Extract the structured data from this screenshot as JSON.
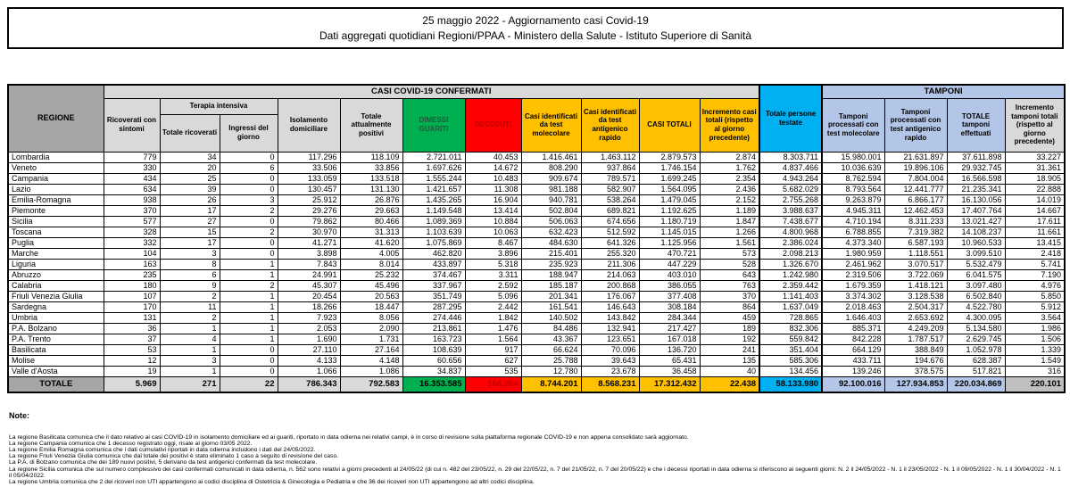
{
  "title": {
    "line1": "25 maggio 2022 - Aggiornamento casi Covid-19",
    "line2": "Dati aggregati quotidiani Regioni/PPAA - Ministero della Salute - Istituto Superiore di Sanità"
  },
  "table": {
    "sections": {
      "casi_confermati": "CASI COVID-19 CONFERMATI",
      "tamponi": "TAMPONI"
    },
    "columns": {
      "regione": "REGIONE",
      "ricoverati": "Ricoverati con sintomi",
      "terapia_intensiva": "Terapia intensiva",
      "ti_totale": "Totale ricoverati",
      "ti_ingressi": "Ingressi del giorno",
      "isolamento": "Isolamento domiciliare",
      "attualmente_positivi": "Totale attualmente positivi",
      "dimessi_guariti": "DIMESSI GUARITI",
      "deceduti": "DECEDUTI",
      "casi_molecolare": "Casi identificati da test molecolare",
      "casi_antigenico": "Casi identificati da test antigenico rapido",
      "casi_totali": "CASI TOTALI",
      "incremento_casi": "Incremento casi totali (rispetto al giorno precedente)",
      "persone_testate": "Totale persone testate",
      "tamponi_molecolare": "Tamponi processati con test molecolare",
      "tamponi_antigenico": "Tamponi processati con test antigenico rapido",
      "tamponi_totale": "TOTALE tamponi effettuati",
      "incremento_tamponi": "Incremento tamponi totali (rispetto al giorno precedente)"
    },
    "rows": [
      [
        "Lombardia",
        "779",
        "34",
        "0",
        "117.296",
        "118.109",
        "2.721.011",
        "40.453",
        "1.416.461",
        "1.463.112",
        "2.879.573",
        "2.874",
        "8.303.711",
        "15.980.001",
        "21.631.897",
        "37.611.898",
        "33.227"
      ],
      [
        "Veneto",
        "330",
        "20",
        "6",
        "33.506",
        "33.856",
        "1.697.626",
        "14.672",
        "808.290",
        "937.864",
        "1.746.154",
        "1.762",
        "4.837.466",
        "10.036.639",
        "19.896.106",
        "29.932.745",
        "31.361"
      ],
      [
        "Campania",
        "434",
        "25",
        "0",
        "133.059",
        "133.518",
        "1.555.244",
        "10.483",
        "909.674",
        "789.571",
        "1.699.245",
        "2.354",
        "4.943.264",
        "8.762.594",
        "7.804.004",
        "16.566.598",
        "18.905"
      ],
      [
        "Lazio",
        "634",
        "39",
        "0",
        "130.457",
        "131.130",
        "1.421.657",
        "11.308",
        "981.188",
        "582.907",
        "1.564.095",
        "2.436",
        "5.682.029",
        "8.793.564",
        "12.441.777",
        "21.235.341",
        "22.888"
      ],
      [
        "Emilia-Romagna",
        "938",
        "26",
        "3",
        "25.912",
        "26.876",
        "1.435.265",
        "16.904",
        "940.781",
        "538.264",
        "1.479.045",
        "2.152",
        "2.755.268",
        "9.263.879",
        "6.866.177",
        "16.130.056",
        "14.019"
      ],
      [
        "Piemonte",
        "370",
        "17",
        "2",
        "29.276",
        "29.663",
        "1.149.548",
        "13.414",
        "502.804",
        "689.821",
        "1.192.625",
        "1.189",
        "3.988.637",
        "4.945.311",
        "12.462.453",
        "17.407.764",
        "14.667"
      ],
      [
        "Sicilia",
        "577",
        "27",
        "0",
        "79.862",
        "80.466",
        "1.089.369",
        "10.884",
        "506.063",
        "674.656",
        "1.180.719",
        "1.847",
        "7.438.677",
        "4.710.194",
        "8.311.233",
        "13.021.427",
        "17.611"
      ],
      [
        "Toscana",
        "328",
        "15",
        "2",
        "30.970",
        "31.313",
        "1.103.639",
        "10.063",
        "632.423",
        "512.592",
        "1.145.015",
        "1.266",
        "4.800.968",
        "6.788.855",
        "7.319.382",
        "14.108.237",
        "11.661"
      ],
      [
        "Puglia",
        "332",
        "17",
        "0",
        "41.271",
        "41.620",
        "1.075.869",
        "8.467",
        "484.630",
        "641.326",
        "1.125.956",
        "1.561",
        "2.386.024",
        "4.373.340",
        "6.587.193",
        "10.960.533",
        "13.415"
      ],
      [
        "Marche",
        "104",
        "3",
        "0",
        "3.898",
        "4.005",
        "462.820",
        "3.896",
        "215.401",
        "255.320",
        "470.721",
        "573",
        "2.098.213",
        "1.980.959",
        "1.118.551",
        "3.099.510",
        "2.418"
      ],
      [
        "Liguria",
        "163",
        "8",
        "1",
        "7.843",
        "8.014",
        "433.897",
        "5.318",
        "235.923",
        "211.306",
        "447.229",
        "528",
        "1.326.670",
        "2.461.962",
        "3.070.517",
        "5.532.479",
        "5.741"
      ],
      [
        "Abruzzo",
        "235",
        "6",
        "1",
        "24.991",
        "25.232",
        "374.467",
        "3.311",
        "188.947",
        "214.063",
        "403.010",
        "643",
        "1.242.980",
        "2.319.506",
        "3.722.069",
        "6.041.575",
        "7.190"
      ],
      [
        "Calabria",
        "180",
        "9",
        "2",
        "45.307",
        "45.496",
        "337.967",
        "2.592",
        "185.187",
        "200.868",
        "386.055",
        "763",
        "2.359.442",
        "1.679.359",
        "1.418.121",
        "3.097.480",
        "4.976"
      ],
      [
        "Friuli Venezia Giulia",
        "107",
        "2",
        "1",
        "20.454",
        "20.563",
        "351.749",
        "5.096",
        "201.341",
        "176.067",
        "377.408",
        "370",
        "1.141.403",
        "3.374.302",
        "3.128.538",
        "6.502.840",
        "5.850"
      ],
      [
        "Sardegna",
        "170",
        "11",
        "1",
        "18.266",
        "18.447",
        "287.295",
        "2.442",
        "161.541",
        "146.643",
        "308.184",
        "864",
        "1.637.049",
        "2.018.463",
        "2.504.317",
        "4.522.780",
        "5.912"
      ],
      [
        "Umbria",
        "131",
        "2",
        "1",
        "7.923",
        "8.056",
        "274.446",
        "1.842",
        "140.502",
        "143.842",
        "284.344",
        "459",
        "728.865",
        "1.646.403",
        "2.653.692",
        "4.300.095",
        "3.564"
      ],
      [
        "P.A. Bolzano",
        "36",
        "1",
        "1",
        "2.053",
        "2.090",
        "213.861",
        "1.476",
        "84.486",
        "132.941",
        "217.427",
        "189",
        "832.306",
        "885.371",
        "4.249.209",
        "5.134.580",
        "1.986"
      ],
      [
        "P.A. Trento",
        "37",
        "4",
        "1",
        "1.690",
        "1.731",
        "163.723",
        "1.564",
        "43.367",
        "123.651",
        "167.018",
        "192",
        "559.842",
        "842.228",
        "1.787.517",
        "2.629.745",
        "1.506"
      ],
      [
        "Basilicata",
        "53",
        "1",
        "0",
        "27.110",
        "27.164",
        "108.639",
        "917",
        "66.624",
        "70.096",
        "136.720",
        "241",
        "351.404",
        "664.129",
        "388.849",
        "1.052.978",
        "1.339"
      ],
      [
        "Molise",
        "12",
        "3",
        "0",
        "4.133",
        "4.148",
        "60.656",
        "627",
        "25.788",
        "39.643",
        "65.431",
        "135",
        "585.306",
        "433.711",
        "194.676",
        "628.387",
        "1.549"
      ],
      [
        "Valle d'Aosta",
        "19",
        "1",
        "0",
        "1.066",
        "1.086",
        "34.837",
        "535",
        "12.780",
        "23.678",
        "36.458",
        "40",
        "134.456",
        "139.246",
        "378.575",
        "517.821",
        "316"
      ]
    ],
    "total": [
      "TOTALE",
      "5.969",
      "271",
      "22",
      "786.343",
      "792.583",
      "16.353.585",
      "166.264",
      "8.744.201",
      "8.568.231",
      "17.312.432",
      "22.438",
      "58.133.980",
      "92.100.016",
      "127.934.853",
      "220.034.869",
      "220.101"
    ]
  },
  "notes": {
    "label": "Note:",
    "items": [
      "La regione Basilicata comunica che il dato relativo ai casi COVID-19 in isolamento domiciliare ed ai guariti, riportato in data odierna nei relativi campi, è in corso di revisione sulla piattaforma regionale COVID-19 e non appena consolidato sarà aggiornato.",
      "La regione Campania comunica che 1 decesso registrato oggi, risale al giorno 03/05 2022.",
      "La regione Emilia Romagna comunica che i dati cumulativi riportati in data odierna includono i dati del 24/05/2022.",
      "La regione Friuli Venezia Giulia comunica che dal totale dei positivi è stato eliminato 1 caso a seguito di revisione del caso.",
      "La P.A. di Bolzano comunica che dei 189 nuovi positivi, 5 derivano da test antigenici confermati da test molecolare.",
      "La regione Sicilia comunica che sul numero complessivo dei casi confermati comunicati in data odierna, n. 562 sono relativi a giorni precedenti al 24/05/22 (di cui n. 482 del 23/05/22, n. 29 del 22/05/22, n. 7 del 21/05/22, n. 7 del 20/05/22) e che i decessi riportati in data odierna si riferiscono ai seguenti giorni: N. 2 il 24/05/2022 - N. 1 il 23/05/2022 - N. 1 il 09/05/2022 - N. 1 il 30/04/2022 - N. 1 il 05/04/2022.",
      "La regione Umbria comunica che 2 dei ricoveri non UTI appartengono ai codici disciplina di Ostetricia & Ginecologia e Pediatria e che 36 dei ricoveri non UTI appartengono ad altri codici disciplina."
    ]
  },
  "colors": {
    "header_dark_gray": "#A6A6A6",
    "header_light_gray": "#D9D9D9",
    "green": "#00B050",
    "red": "#FF0000",
    "orange": "#FFC000",
    "cyan": "#00B0F0",
    "light_blue": "#B4C6E7",
    "dark_red_text": "#C00000",
    "dark_green_text": "#1F5C3B",
    "total_end_gray": "#BFBFBF"
  }
}
